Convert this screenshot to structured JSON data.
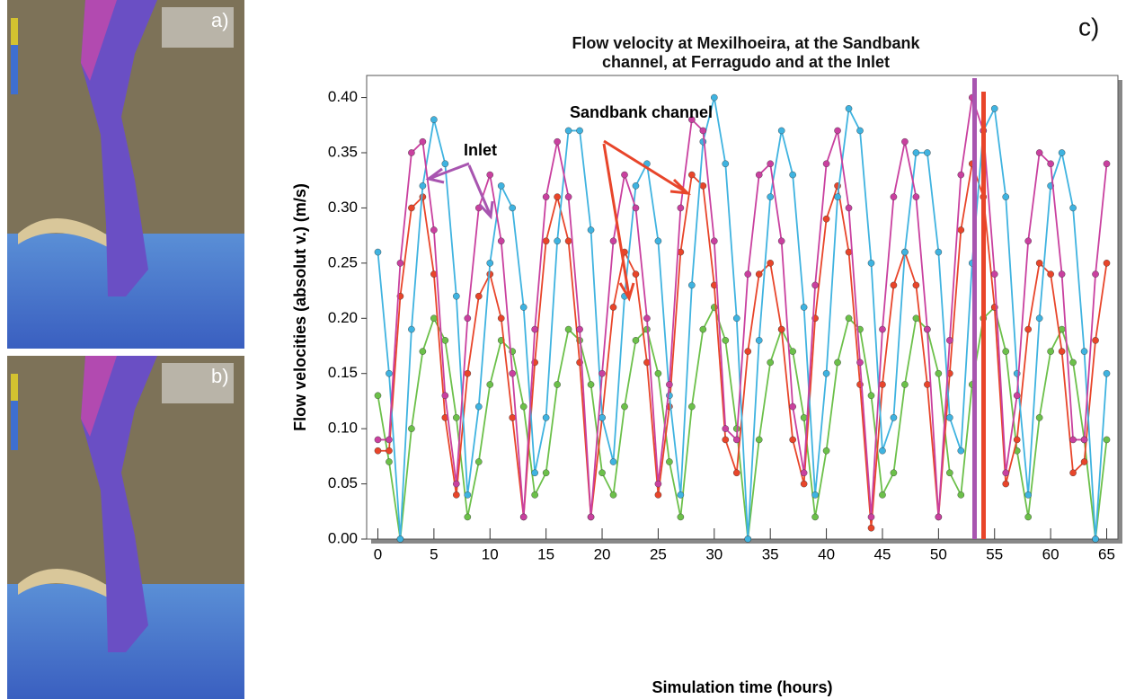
{
  "panels": {
    "a": "a)",
    "b": "b)"
  },
  "chart_data": {
    "type": "line",
    "panel_label": "c)",
    "title": "Flow velocity at Mexilhoeira, at the Sandbank channel, at Ferragudo and at the Inlet",
    "x_label": "Simulation time (hours)",
    "y_label": "Flow velocities (absolut v.) (m/s)",
    "annotations": {
      "sandbank": "Sandbank channel",
      "inlet": "Inlet"
    },
    "x": [
      0,
      1,
      2,
      3,
      4,
      5,
      6,
      7,
      8,
      9,
      10,
      11,
      12,
      13,
      14,
      15,
      16,
      17,
      18,
      19,
      20,
      21,
      22,
      23,
      24,
      25,
      26,
      27,
      28,
      29,
      30,
      31,
      32,
      33,
      34,
      35,
      36,
      37,
      38,
      39,
      40,
      41,
      42,
      43,
      44,
      45,
      46,
      47,
      48,
      49,
      50,
      51,
      52,
      53,
      54,
      55,
      56,
      57,
      58,
      59,
      60,
      61,
      62,
      63,
      64,
      65
    ],
    "xlim": [
      -1,
      66
    ],
    "xticks": [
      0,
      5,
      10,
      15,
      20,
      25,
      30,
      35,
      40,
      45,
      50,
      55,
      60,
      65
    ],
    "ylim": [
      0,
      0.42
    ],
    "yticks": [
      {
        "value": 0,
        "label": "0.00"
      },
      {
        "value": 0.05,
        "label": "0.05"
      },
      {
        "value": 0.1,
        "label": "0.10"
      },
      {
        "value": 0.15,
        "label": "0.15"
      },
      {
        "value": 0.2,
        "label": "0.20"
      },
      {
        "value": 0.25,
        "label": "0.25"
      },
      {
        "value": 0.3,
        "label": "0.30"
      },
      {
        "value": 0.35,
        "label": "0.35"
      },
      {
        "value": 0.4,
        "label": "0.40"
      }
    ],
    "series": [
      {
        "color": "#6cc04a",
        "values": [
          0.13,
          0.07,
          0,
          0.1,
          0.17,
          0.2,
          0.18,
          0.11,
          0.02,
          0.07,
          0.14,
          0.18,
          0.17,
          0.12,
          0.04,
          0.06,
          0.14,
          0.19,
          0.18,
          0.14,
          0.06,
          0.04,
          0.12,
          0.18,
          0.19,
          0.15,
          0.07,
          0.02,
          0.12,
          0.19,
          0.21,
          0.18,
          0.1,
          0,
          0.09,
          0.16,
          0.19,
          0.17,
          0.11,
          0.02,
          0.08,
          0.16,
          0.2,
          0.19,
          0.13,
          0.04,
          0.06,
          0.14,
          0.2,
          0.19,
          0.15,
          0.06,
          0.04,
          0.14,
          0.2,
          0.21,
          0.17,
          0.08,
          0.02,
          0.11,
          0.17,
          0.19,
          0.16,
          0.09,
          0,
          0.09
        ]
      },
      {
        "color": "#e8452a",
        "values": [
          0.08,
          0.08,
          0.22,
          0.3,
          0.31,
          0.24,
          0.11,
          0.04,
          0.15,
          0.22,
          0.24,
          0.2,
          0.11,
          0.02,
          0.16,
          0.27,
          0.31,
          0.27,
          0.16,
          0.02,
          0.11,
          0.21,
          0.26,
          0.24,
          0.16,
          0.04,
          0.12,
          0.26,
          0.33,
          0.32,
          0.23,
          0.09,
          0.06,
          0.17,
          0.24,
          0.25,
          0.19,
          0.09,
          0.05,
          0.2,
          0.29,
          0.32,
          0.26,
          0.14,
          0.01,
          0.14,
          0.23,
          0.26,
          0.23,
          0.14,
          0.02,
          0.15,
          0.28,
          0.34,
          0.31,
          0.21,
          0.05,
          0.09,
          0.19,
          0.25,
          0.24,
          0.17,
          0.06,
          0.07,
          0.18,
          0.25
        ]
      },
      {
        "color": "#3fb3e0",
        "values": [
          0.26,
          0.15,
          0,
          0.19,
          0.32,
          0.38,
          0.34,
          0.22,
          0.04,
          0.12,
          0.25,
          0.32,
          0.3,
          0.21,
          0.06,
          0.11,
          0.27,
          0.37,
          0.37,
          0.28,
          0.11,
          0.07,
          0.22,
          0.32,
          0.34,
          0.27,
          0.13,
          0.04,
          0.23,
          0.36,
          0.4,
          0.34,
          0.2,
          0,
          0.18,
          0.31,
          0.37,
          0.33,
          0.21,
          0.04,
          0.15,
          0.31,
          0.39,
          0.37,
          0.25,
          0.08,
          0.11,
          0.26,
          0.35,
          0.35,
          0.26,
          0.11,
          0.08,
          0.25,
          0.37,
          0.39,
          0.31,
          0.15,
          0.04,
          0.2,
          0.32,
          0.35,
          0.3,
          0.17,
          0,
          0.15
        ]
      },
      {
        "color": "#c9409f",
        "values": [
          0.09,
          0.09,
          0.25,
          0.35,
          0.36,
          0.28,
          0.13,
          0.05,
          0.2,
          0.3,
          0.33,
          0.27,
          0.15,
          0.02,
          0.19,
          0.31,
          0.36,
          0.31,
          0.19,
          0.02,
          0.15,
          0.27,
          0.33,
          0.3,
          0.2,
          0.05,
          0.14,
          0.3,
          0.38,
          0.37,
          0.27,
          0.1,
          0.09,
          0.24,
          0.33,
          0.34,
          0.27,
          0.12,
          0.06,
          0.23,
          0.34,
          0.37,
          0.3,
          0.16,
          0.02,
          0.19,
          0.31,
          0.36,
          0.31,
          0.19,
          0.02,
          0.18,
          0.33,
          0.4,
          0.37,
          0.24,
          0.06,
          0.13,
          0.27,
          0.35,
          0.34,
          0.24,
          0.09,
          0.09,
          0.24,
          0.34
        ]
      }
    ]
  }
}
